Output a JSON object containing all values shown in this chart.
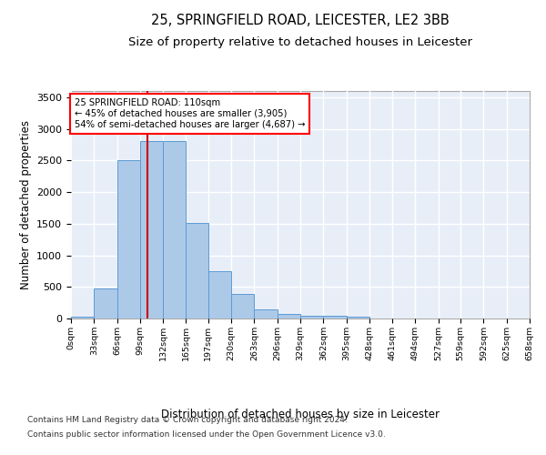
{
  "title_line1": "25, SPRINGFIELD ROAD, LEICESTER, LE2 3BB",
  "title_line2": "Size of property relative to detached houses in Leicester",
  "xlabel": "Distribution of detached houses by size in Leicester",
  "ylabel": "Number of detached properties",
  "bar_values": [
    25,
    470,
    2500,
    2810,
    2810,
    1510,
    750,
    390,
    140,
    65,
    50,
    50,
    30,
    0,
    0,
    0,
    0,
    0,
    0,
    0
  ],
  "bin_edges": [
    0,
    33,
    66,
    99,
    132,
    165,
    197,
    230,
    263,
    296,
    329,
    362,
    395,
    428,
    461,
    494,
    527,
    559,
    592,
    625,
    658
  ],
  "bar_color": "#adc9e8",
  "bar_edgecolor": "#5b9bd5",
  "property_size": 110,
  "annotation_text": "25 SPRINGFIELD ROAD: 110sqm\n← 45% of detached houses are smaller (3,905)\n54% of semi-detached houses are larger (4,687) →",
  "vline_color": "#cc0000",
  "vline_x": 110,
  "ylim": [
    0,
    3600
  ],
  "yticks": [
    0,
    500,
    1000,
    1500,
    2000,
    2500,
    3000,
    3500
  ],
  "footer_line1": "Contains HM Land Registry data © Crown copyright and database right 2024.",
  "footer_line2": "Contains public sector information licensed under the Open Government Licence v3.0.",
  "bg_color": "#e8eef8",
  "grid_color": "#ffffff",
  "title_fontsize": 10.5,
  "subtitle_fontsize": 9.5,
  "axis_label_fontsize": 8.5,
  "footer_fontsize": 6.5
}
